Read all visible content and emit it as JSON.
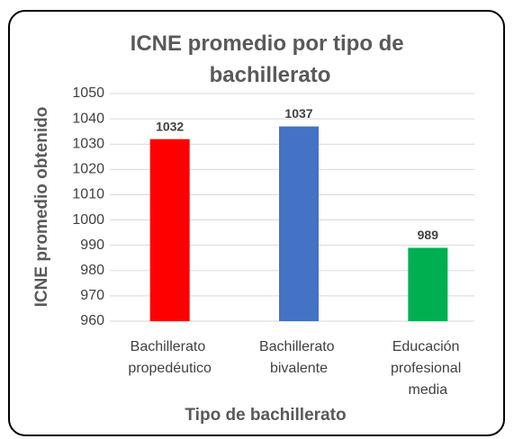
{
  "chart_data": {
    "type": "bar",
    "title": "ICNE promedio por tipo de bachillerato",
    "x_label": "Tipo de bachillerato",
    "y_label": "ICNE promedio obtenido",
    "categories": [
      "Bachillerato propedéutico",
      "Bachillerato bivalente",
      "Educación profesional media"
    ],
    "values": [
      1032,
      1037,
      989
    ],
    "colors": [
      "#ff0000",
      "#4472c4",
      "#00b050"
    ],
    "ylim": [
      960,
      1050
    ],
    "yticks": [
      960,
      970,
      980,
      990,
      1000,
      1010,
      1020,
      1030,
      1040,
      1050
    ],
    "grid": true
  }
}
